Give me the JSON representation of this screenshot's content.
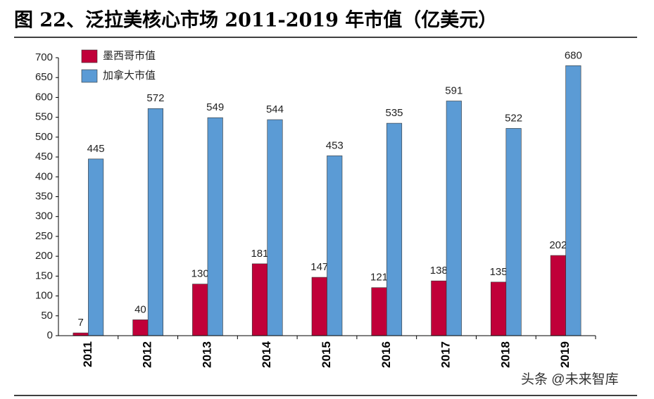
{
  "chart_data": {
    "type": "bar",
    "title": "图 22、泛拉美核心市场 2011-2019 年市值（亿美元）",
    "categories": [
      "2011",
      "2012",
      "2013",
      "2014",
      "2015",
      "2016",
      "2017",
      "2018",
      "2019"
    ],
    "series": [
      {
        "name": "墨西哥市值",
        "color": "#c00039",
        "values": [
          7,
          40,
          130,
          181,
          147,
          121,
          138,
          135,
          202
        ]
      },
      {
        "name": "加拿大市值",
        "color": "#5b9bd5",
        "values": [
          445,
          572,
          549,
          544,
          453,
          535,
          591,
          522,
          680
        ]
      }
    ],
    "ylim": [
      0,
      700
    ],
    "yticks": [
      0,
      50,
      100,
      150,
      200,
      250,
      300,
      350,
      400,
      450,
      500,
      550,
      600,
      650,
      700
    ],
    "legend": "top-left",
    "watermark": "头条 @未来智库"
  }
}
